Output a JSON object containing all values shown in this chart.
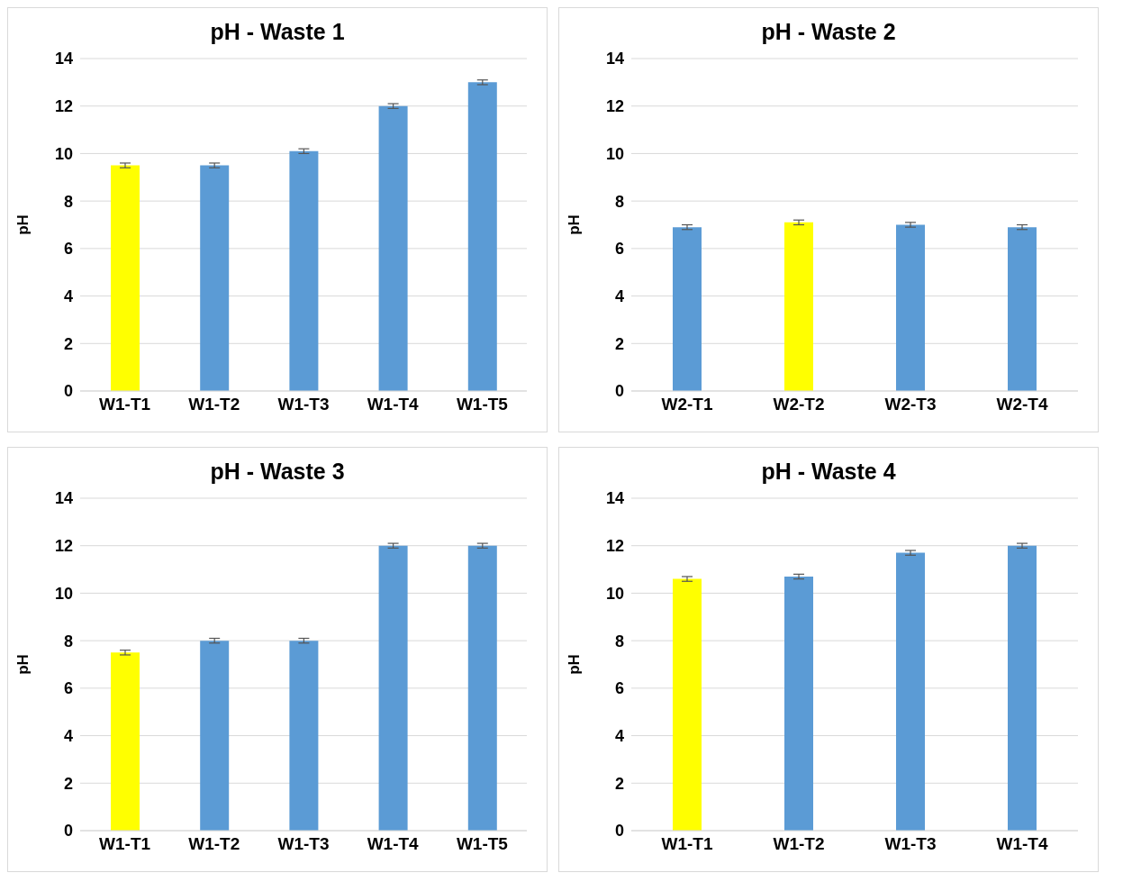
{
  "chart_data": [
    {
      "type": "bar",
      "title": "pH - Waste 1",
      "ylabel": "pH",
      "categories": [
        "W1-T1",
        "W1-T2",
        "W1-T3",
        "W1-T4",
        "W1-T5"
      ],
      "values": [
        9.5,
        9.5,
        10.1,
        12,
        13
      ],
      "errors": [
        0.1,
        0.1,
        0.1,
        0.1,
        0.1
      ],
      "colors": [
        "#ffff00",
        "#5b9bd5",
        "#5b9bd5",
        "#5b9bd5",
        "#5b9bd5"
      ],
      "ylim": [
        0,
        14
      ],
      "yticks": [
        0,
        2,
        4,
        6,
        8,
        10,
        12,
        14
      ],
      "grid": "y"
    },
    {
      "type": "bar",
      "title": "pH - Waste 2",
      "ylabel": "pH",
      "categories": [
        "W2-T1",
        "W2-T2",
        "W2-T3",
        "W2-T4"
      ],
      "values": [
        6.9,
        7.1,
        7.0,
        6.9
      ],
      "errors": [
        0.1,
        0.1,
        0.1,
        0.1
      ],
      "colors": [
        "#5b9bd5",
        "#ffff00",
        "#5b9bd5",
        "#5b9bd5"
      ],
      "ylim": [
        0,
        14
      ],
      "yticks": [
        0,
        2,
        4,
        6,
        8,
        10,
        12,
        14
      ],
      "grid": "y"
    },
    {
      "type": "bar",
      "title": "pH - Waste 3",
      "ylabel": "pH",
      "categories": [
        "W1-T1",
        "W1-T2",
        "W1-T3",
        "W1-T4",
        "W1-T5"
      ],
      "values": [
        7.5,
        8,
        8,
        12,
        12
      ],
      "errors": [
        0.1,
        0.1,
        0.1,
        0.1,
        0.1
      ],
      "colors": [
        "#ffff00",
        "#5b9bd5",
        "#5b9bd5",
        "#5b9bd5",
        "#5b9bd5"
      ],
      "ylim": [
        0,
        14
      ],
      "yticks": [
        0,
        2,
        4,
        6,
        8,
        10,
        12,
        14
      ],
      "grid": "y"
    },
    {
      "type": "bar",
      "title": "pH - Waste 4",
      "ylabel": "pH",
      "categories": [
        "W1-T1",
        "W1-T2",
        "W1-T3",
        "W1-T4"
      ],
      "values": [
        10.6,
        10.7,
        11.7,
        12.0
      ],
      "errors": [
        0.1,
        0.1,
        0.1,
        0.1
      ],
      "colors": [
        "#ffff00",
        "#5b9bd5",
        "#5b9bd5",
        "#5b9bd5"
      ],
      "ylim": [
        0,
        14
      ],
      "yticks": [
        0,
        2,
        4,
        6,
        8,
        10,
        12,
        14
      ],
      "grid": "y"
    }
  ]
}
